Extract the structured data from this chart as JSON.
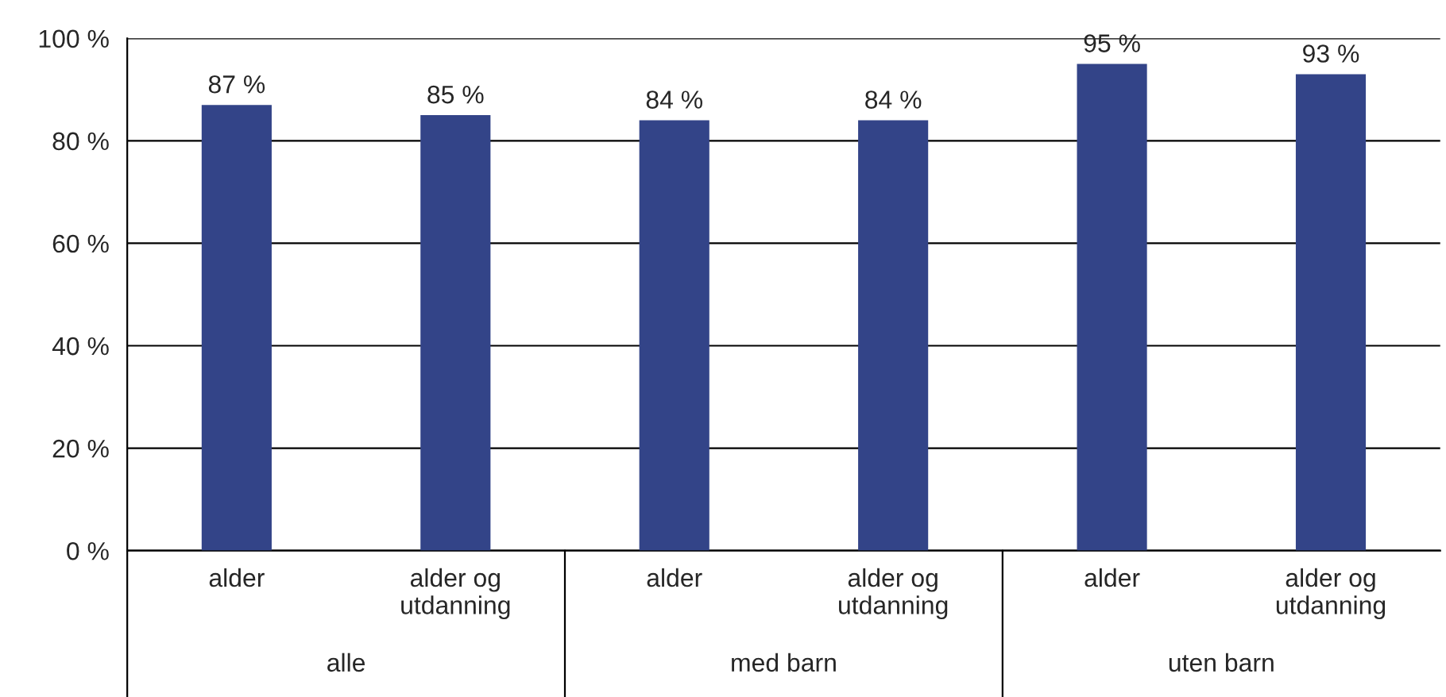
{
  "chart_data": {
    "type": "bar",
    "categories": [
      "alder",
      "alder og\nutdanning",
      "alder",
      "alder og\nutdanning",
      "alder",
      "alder og\nutdanning"
    ],
    "values": [
      87,
      85,
      84,
      84,
      95,
      93
    ],
    "value_labels": [
      "87 %",
      "85 %",
      "84 %",
      "84 %",
      "95 %",
      "93 %"
    ],
    "color": "#334488",
    "annotations": [
      "alle",
      "med barn",
      "uten barn"
    ],
    "ylim": [
      0,
      100
    ],
    "yticks": [
      {
        "value": 0,
        "label": "0 %"
      },
      {
        "value": 20,
        "label": "20 %"
      },
      {
        "value": 40,
        "label": "40 %"
      },
      {
        "value": 60,
        "label": "60 %"
      },
      {
        "value": 80,
        "label": "80 %"
      },
      {
        "value": 100,
        "label": "100 %"
      }
    ],
    "grid": "y"
  }
}
